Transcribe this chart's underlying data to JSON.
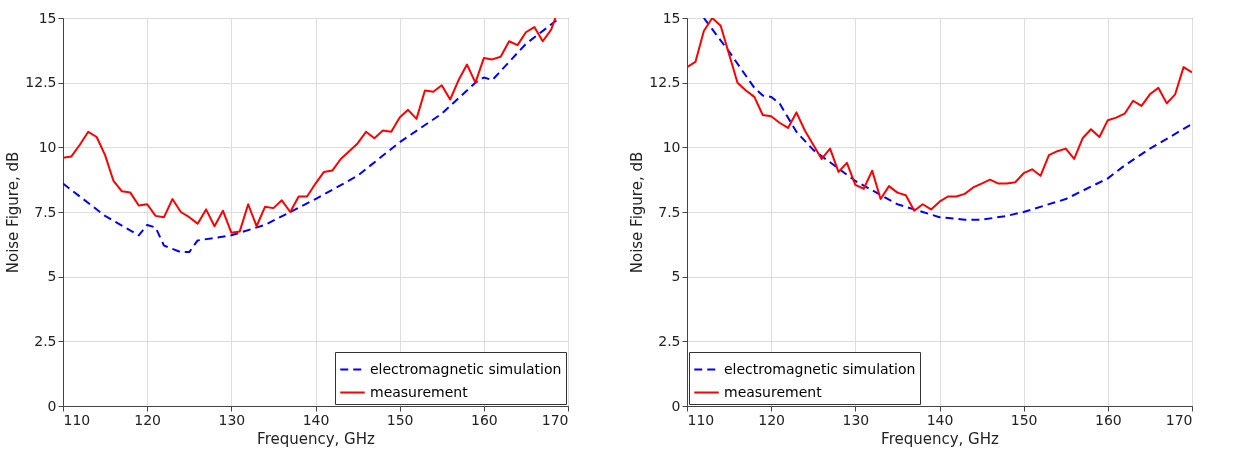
{
  "chart_data": [
    {
      "type": "line",
      "xlabel": "Frequency, GHz",
      "ylabel": "Noise Figure, dB",
      "xlim": [
        110,
        170
      ],
      "ylim": [
        0,
        15
      ],
      "xticks": [
        110,
        120,
        130,
        140,
        150,
        160,
        170
      ],
      "yticks": [
        0,
        2.5,
        5,
        7.5,
        10,
        12.5,
        15
      ],
      "grid": true,
      "legend": "bottom right",
      "marker": "none",
      "series": [
        {
          "name": "electromagnetic simulation",
          "color": "#0000ff",
          "line_style": "dashed",
          "x": [
            110,
            115,
            119,
            120,
            121,
            122,
            124,
            125,
            126,
            130,
            134,
            137,
            140,
            145,
            150,
            155,
            159,
            160,
            161,
            165,
            169
          ],
          "values": [
            8.6,
            7.35,
            6.6,
            7.0,
            6.9,
            6.2,
            5.95,
            5.95,
            6.4,
            6.6,
            7.0,
            7.5,
            8.0,
            8.9,
            10.2,
            11.3,
            12.5,
            12.7,
            12.6,
            14.0,
            15.0
          ]
        },
        {
          "name": "measurement",
          "color": "#ff0000",
          "line_style": "solid",
          "x": [
            110,
            111,
            112,
            113,
            114,
            115,
            116,
            117,
            118,
            119,
            120,
            121,
            122,
            123,
            124,
            125,
            126,
            127,
            128,
            129,
            130,
            131,
            132,
            133,
            134,
            135,
            136,
            137,
            138,
            139,
            140,
            141,
            142,
            143,
            144,
            145,
            146,
            147,
            148,
            149,
            150,
            151,
            152,
            153,
            154,
            155,
            156,
            157,
            158,
            159,
            160,
            161,
            162,
            163,
            164,
            165,
            166,
            167,
            168,
            168.5
          ],
          "values": [
            9.6,
            9.65,
            10.1,
            10.6,
            10.4,
            9.7,
            8.7,
            8.3,
            8.25,
            7.75,
            7.8,
            7.35,
            7.3,
            8.0,
            7.5,
            7.3,
            7.05,
            7.6,
            6.95,
            7.55,
            6.7,
            6.75,
            7.8,
            6.95,
            7.7,
            7.65,
            7.95,
            7.5,
            8.1,
            8.1,
            8.6,
            9.05,
            9.1,
            9.55,
            9.85,
            10.15,
            10.6,
            10.35,
            10.65,
            10.6,
            11.15,
            11.45,
            11.1,
            12.2,
            12.15,
            12.4,
            11.85,
            12.6,
            13.2,
            12.5,
            13.45,
            13.4,
            13.5,
            14.1,
            13.95,
            14.45,
            14.65,
            14.1,
            14.55,
            15.0
          ]
        }
      ]
    },
    {
      "type": "line",
      "xlabel": "Frequency, GHz",
      "ylabel": "Noise Figure, dB",
      "xlim": [
        110,
        170
      ],
      "ylim": [
        0,
        15
      ],
      "xticks": [
        110,
        120,
        130,
        140,
        150,
        160,
        170
      ],
      "yticks": [
        0,
        2.5,
        5,
        7.5,
        10,
        12.5,
        15
      ],
      "grid": true,
      "legend": "bottom left",
      "marker": "none",
      "series": [
        {
          "name": "electromagnetic simulation",
          "color": "#0000ff",
          "line_style": "dashed",
          "x": [
            112,
            115,
            118,
            119,
            120,
            121,
            123,
            125,
            130,
            135,
            140,
            143,
            145,
            148,
            150,
            155,
            160,
            162,
            165,
            170
          ],
          "values": [
            15.0,
            13.7,
            12.3,
            12.0,
            11.95,
            11.7,
            10.6,
            9.9,
            8.7,
            7.8,
            7.3,
            7.2,
            7.2,
            7.35,
            7.5,
            8.0,
            8.8,
            9.3,
            9.95,
            10.9
          ]
        },
        {
          "name": "measurement",
          "color": "#ff0000",
          "line_style": "solid",
          "x": [
            110,
            111,
            112,
            113,
            114,
            115,
            116,
            117,
            118,
            119,
            120,
            121,
            122,
            123,
            124,
            125,
            126,
            127,
            128,
            129,
            130,
            131,
            132,
            133,
            134,
            135,
            136,
            137,
            138,
            139,
            140,
            141,
            142,
            143,
            144,
            145,
            146,
            147,
            148,
            149,
            150,
            151,
            152,
            153,
            154,
            155,
            156,
            157,
            158,
            159,
            160,
            161,
            162,
            163,
            164,
            165,
            166,
            167,
            168,
            169,
            170
          ],
          "values": [
            13.1,
            13.3,
            14.5,
            15.0,
            14.7,
            13.6,
            12.5,
            12.2,
            11.95,
            11.25,
            11.2,
            10.95,
            10.75,
            11.35,
            10.65,
            10.1,
            9.55,
            9.95,
            9.05,
            9.4,
            8.55,
            8.4,
            9.1,
            8.0,
            8.5,
            8.25,
            8.15,
            7.55,
            7.8,
            7.6,
            7.9,
            8.1,
            8.1,
            8.2,
            8.45,
            8.6,
            8.75,
            8.6,
            8.6,
            8.65,
            9.0,
            9.15,
            8.9,
            9.7,
            9.85,
            9.95,
            9.55,
            10.35,
            10.7,
            10.4,
            11.05,
            11.15,
            11.3,
            11.8,
            11.6,
            12.05,
            12.3,
            11.7,
            12.05,
            13.1,
            12.9
          ]
        }
      ]
    }
  ]
}
